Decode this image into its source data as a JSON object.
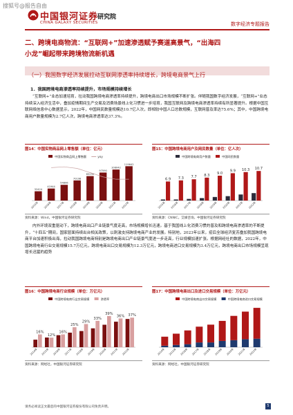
{
  "watermark": "搜狐号@报告自由",
  "header": {
    "org_cn": "中国银河证券",
    "org_en": "CHINA GALAXY SECURITIES",
    "institute": "研究院",
    "report_type": "数字经济专题报告"
  },
  "section": {
    "title_line1": "二、跨境电商物流：“互联网+”加速渗透赋予赛道高景气，“出海四",
    "title_line2": "小龙”崛起带来跨境物流新机遇",
    "subsection": "（一）我国数字经济发展拉动互联网渗透率持续增长，跨境电商景气上行",
    "para_head": "1．我国跨境电商渗透率持续提升，市场规模持续增长",
    "para1": "“互联网+”业态加速培育，拉动我国跨境电商渗透率持续提升，跨境电商出口市场规模不断扩张。伴随我国数字经济发展，“互联网+”业态持续深入经济生活中，叠加疫情期间生产交易及消费场景线上化习惯进一步培育，我国互联网及跨境电商渗透率持续有所显著提升。根据中国互联网络信息中心数据显示，2022年，中国网民数量规模达10.7亿人次，即相较中国人口总数规模，互联网普及率达75.6%；其中，中国跨境电商用户数量规模为2.7亿人次，跨境电商渗透率达37.3%。",
    "para2": "内外环境双重驱动下，跨境电商出口产业链景气度走高，市场规模增长迅速。基于我国线上化消费习惯的普及和跨境电商渗透率的不断提升，“十四五”期间，国家层面持续出台相关政策，以刺激支持跨境电商产业的发展。特别地，2023年以来，疫后全球经济复苏叠加我国跨境电商平台加速积极出海，拉动我国跨境电商特别是跨境电商出口产业链景气度进一步走高，行业规模加速扩张。根据网经社的数据，2022年，中国跨境电商行业交易规模15.7万亿元，跨境电商出口交易规模为12.3万亿元，跨境电商进口交易规模为3.4万亿元，跨境电商出口市场规模呈现增长迅猛的趋势"
  },
  "figures": {
    "fig14_title": "图14：中国实物商品网上零售额（单位：亿元）",
    "fig15_title": "图15：中国跨境电商用户及网民数量（单位：亿人次）",
    "fig16_title": "图16：中国跨境电商行业规模（单位：万亿元）",
    "fig17_title": "图17：中国跨境电商出口及进口交易规模（单位：万亿元）",
    "src14": "资料来源：Wind，中国银河证券研究院",
    "src15": "资料来源：CNNIC，艾媒咨询，中国银河证券研究院",
    "src16": "资料来源：网经社，中国银河证券研究院",
    "src17": "资料来源：网经社，中国银河证券研究院"
  },
  "footer": {
    "disclaimer": "请务必阅读正文最后的中国银河证券股份有限公司免责声明。",
    "page": "5"
  },
  "colors": {
    "brand_red": "#b01818",
    "dark_red": "#7a1010",
    "navy": "#1f3a6e"
  },
  "chart_data": [
    {
      "type": "bar",
      "id": "fig14",
      "legend": [
        "中国实物商品网上零售额",
        "yoy"
      ],
      "categories": [
        "2015年",
        "2016年",
        "2017年",
        "2018年",
        "2019年",
        "2020年",
        "2021年",
        "2022年"
      ],
      "values": [
        32424,
        41944,
        54806,
        70198,
        85239,
        97590,
        108042,
        119642
      ],
      "value_labels": [
        "32424",
        "41944",
        "54806",
        "70198",
        "85239",
        "97590",
        "108042",
        "119642"
      ]
    },
    {
      "type": "bar",
      "id": "fig15",
      "legend": [
        "中国跨境电商用户数量",
        "中国网民数量"
      ],
      "categories": [
        "2015年",
        "2016年",
        "2017年",
        "2018年",
        "2019年",
        "2020年",
        "2021年",
        "2022年"
      ],
      "series": [
        {
          "name": "中国跨境电商用户数量",
          "values": [
            0.4,
            0.4,
            0.6,
            0.9,
            1.3,
            1.6,
            2.2,
            2.7
          ]
        },
        {
          "name": "中国网民数量",
          "values": [
            6.9,
            7.3,
            7.7,
            8.3,
            9.0,
            9.9,
            10.3,
            10.7
          ]
        }
      ],
      "value_labels": [
        "6.9",
        "7.3",
        "7.7",
        "8.3",
        "9.0",
        "9.9",
        "10.3",
        "10.7"
      ]
    },
    {
      "type": "bar",
      "id": "fig16",
      "legend": [
        "中国跨境电商行业交易规模",
        "渗透率"
      ],
      "categories": [
        "2014年",
        "2015年",
        "2016年",
        "2017年",
        "2018年",
        "2019年",
        "2020年",
        "2021年",
        "2022年"
      ],
      "series": [
        {
          "name": "中国跨境电商行业交易规模",
          "values": [
            4.2,
            5.4,
            6.7,
            8.1,
            9.0,
            10.5,
            12.5,
            14.2,
            15.7
          ]
        },
        {
          "name": "渗透率",
          "values": [
            16,
            12,
            16,
            25,
            29,
            33,
            39,
            36,
            37
          ]
        }
      ],
      "rate_labels": [
        "16%",
        "12%",
        "16%",
        "25%",
        "29%",
        "33%",
        "39%",
        "36%",
        "37%"
      ]
    },
    {
      "type": "bar",
      "id": "fig17",
      "legend": [
        "中国跨境电商出口交易规模",
        "中国跨境电商进口交易规模"
      ],
      "categories": [
        "2014年",
        "2015年",
        "2016年",
        "2017年",
        "2018年",
        "2019年",
        "2020年",
        "2021年",
        "2022年"
      ],
      "series": [
        {
          "name": "中国跨境电商出口交易规模",
          "values": [
            3.6,
            4.5,
            5.5,
            6.3,
            7.1,
            8.0,
            9.7,
            11.0,
            12.3
          ]
        },
        {
          "name": "中国跨境电商进口交易规模",
          "values": [
            0.6,
            0.9,
            1.2,
            1.9,
            1.9,
            2.5,
            2.8,
            3.2,
            3.4
          ]
        }
      ]
    }
  ]
}
